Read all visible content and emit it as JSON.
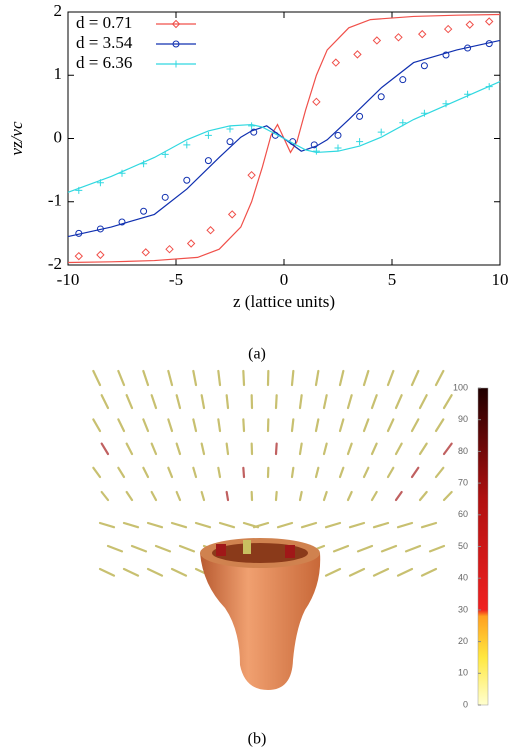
{
  "chart_data": {
    "type": "line",
    "caption": "(a)",
    "xlabel": "z (lattice units)",
    "ylabel": "vz/vc",
    "xlim": [
      -10,
      10
    ],
    "ylim": [
      -2,
      2
    ],
    "xticks": [
      -10,
      -5,
      0,
      5,
      10
    ],
    "yticks": [
      -2,
      -1,
      0,
      1,
      2
    ],
    "legend": "top-left",
    "series": [
      {
        "name": "d = 0.71",
        "color": "#f0504a",
        "marker": "diamond",
        "x": [
          -10,
          -8,
          -6,
          -4,
          -3,
          -2,
          -1.5,
          -1,
          -0.6,
          -0.3,
          0,
          0.3,
          0.6,
          1,
          1.5,
          2,
          3,
          4,
          6,
          8,
          10
        ],
        "values": [
          -1.96,
          -1.95,
          -1.93,
          -1.88,
          -1.75,
          -1.4,
          -1.0,
          -0.45,
          0.05,
          0.22,
          0,
          -0.22,
          -0.05,
          0.45,
          1.0,
          1.4,
          1.75,
          1.88,
          1.93,
          1.95,
          1.96
        ],
        "points_x": [
          -9.5,
          -8.5,
          -6.4,
          -5.3,
          -4.3,
          -3.4,
          -2.4,
          -1.5,
          1.5,
          2.4,
          3.4,
          4.3,
          5.3,
          6.4,
          7.6,
          8.6,
          9.5
        ],
        "points_values": [
          -1.86,
          -1.84,
          -1.8,
          -1.75,
          -1.66,
          -1.45,
          -1.2,
          -0.58,
          0.58,
          1.2,
          1.33,
          1.55,
          1.6,
          1.65,
          1.73,
          1.8,
          1.85
        ]
      },
      {
        "name": "d = 3.54",
        "color": "#1030b0",
        "marker": "circle",
        "x": [
          -10,
          -8,
          -6,
          -4.5,
          -3,
          -2,
          -1.5,
          -0.8,
          0,
          0.8,
          1.5,
          2,
          3,
          4.5,
          6,
          8,
          10
        ],
        "values": [
          -1.55,
          -1.4,
          -1.2,
          -0.8,
          -0.3,
          0.02,
          0.12,
          0.2,
          0,
          -0.2,
          -0.12,
          -0.02,
          0.3,
          0.8,
          1.2,
          1.4,
          1.55
        ],
        "points_x": [
          -9.5,
          -8.5,
          -7.5,
          -6.5,
          -5.5,
          -4.5,
          -3.5,
          -2.5,
          -1.4,
          -0.4,
          0.4,
          1.4,
          2.5,
          3.5,
          4.5,
          5.5,
          6.5,
          7.5,
          8.5,
          9.5
        ],
        "points_values": [
          -1.5,
          -1.43,
          -1.32,
          -1.15,
          -0.93,
          -0.66,
          -0.35,
          -0.05,
          0.1,
          0.05,
          -0.05,
          -0.1,
          0.05,
          0.35,
          0.66,
          0.93,
          1.15,
          1.32,
          1.43,
          1.5
        ]
      },
      {
        "name": "d = 6.36",
        "color": "#30d8e0",
        "marker": "plus",
        "x": [
          -10,
          -8,
          -6,
          -4.5,
          -3.5,
          -2.5,
          -1.5,
          -1,
          0,
          1,
          1.5,
          2.5,
          3.5,
          4.5,
          6,
          8,
          10
        ],
        "values": [
          -0.85,
          -0.6,
          -0.3,
          -0.02,
          0.12,
          0.2,
          0.22,
          0.18,
          0,
          -0.18,
          -0.22,
          -0.2,
          -0.12,
          0.02,
          0.3,
          0.6,
          0.9
        ],
        "points_x": [
          -9.5,
          -8.5,
          -7.5,
          -6.5,
          -5.5,
          -4.5,
          -3.5,
          -2.5,
          -1.5,
          1.5,
          2.5,
          3.5,
          4.5,
          5.5,
          6.5,
          7.5,
          8.5,
          9.5
        ],
        "points_values": [
          -0.82,
          -0.7,
          -0.55,
          -0.4,
          -0.25,
          -0.1,
          0.05,
          0.15,
          0.2,
          -0.2,
          -0.15,
          -0.05,
          0.1,
          0.25,
          0.4,
          0.55,
          0.7,
          0.82
        ]
      }
    ]
  },
  "panel_b": {
    "caption": "(b)",
    "colorbar": {
      "lim": [
        0,
        100
      ],
      "ticks": [
        0,
        10,
        20,
        30,
        40,
        50,
        60,
        70,
        80,
        90,
        100
      ]
    }
  }
}
